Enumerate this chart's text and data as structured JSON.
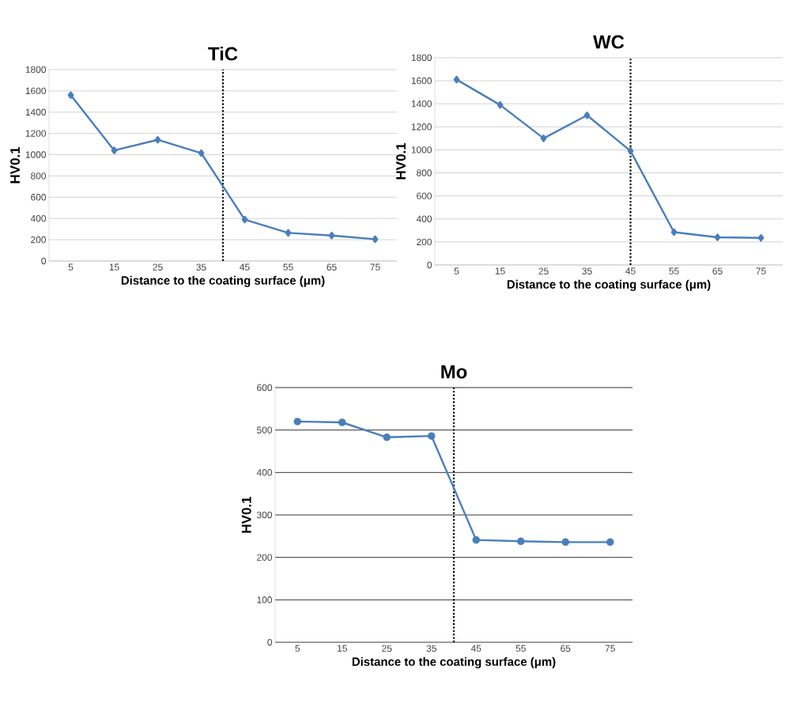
{
  "chart_data": [
    {
      "type": "line",
      "title": "TiC",
      "xlabel": "Distance to the coating surface (μm)",
      "ylabel": "HV0.1",
      "x": [
        5,
        15,
        25,
        35,
        45,
        55,
        65,
        75
      ],
      "values": [
        1560,
        1040,
        1140,
        1015,
        390,
        265,
        240,
        205
      ],
      "color": "#4a7ebb",
      "marker": "diamond",
      "xlim": [
        0,
        80
      ],
      "xticks": [
        5,
        15,
        25,
        35,
        45,
        55,
        65,
        75
      ],
      "ylim": [
        0,
        1800
      ],
      "yticks": [
        0,
        200,
        400,
        600,
        800,
        1000,
        1200,
        1400,
        1600,
        1800
      ],
      "grid": "y",
      "ref_lines": [
        {
          "axis": "x",
          "value": 40,
          "color": "#000000",
          "line_style": "dotted"
        }
      ]
    },
    {
      "type": "line",
      "title": "WC",
      "xlabel": "Distance to the coating surface (μm)",
      "ylabel": "HV0.1",
      "x": [
        5,
        15,
        25,
        35,
        45,
        55,
        65,
        75
      ],
      "values": [
        1610,
        1390,
        1100,
        1300,
        990,
        285,
        240,
        235
      ],
      "color": "#4a7ebb",
      "marker": "diamond",
      "xlim": [
        0,
        80
      ],
      "xticks": [
        5,
        15,
        25,
        35,
        45,
        55,
        65,
        75
      ],
      "ylim": [
        0,
        1800
      ],
      "yticks": [
        0,
        200,
        400,
        600,
        800,
        1000,
        1200,
        1400,
        1600,
        1800
      ],
      "grid": "y",
      "ref_lines": [
        {
          "axis": "x",
          "value": 45,
          "color": "#000000",
          "line_style": "dotted"
        }
      ]
    },
    {
      "type": "line",
      "title": "Mo",
      "xlabel": "Distance to the coating surface (μm)",
      "ylabel": "HV0.1",
      "x": [
        5,
        15,
        25,
        35,
        45,
        55,
        65,
        75
      ],
      "values": [
        520,
        518,
        483,
        486,
        241,
        238,
        236,
        236
      ],
      "color": "#4a7ebb",
      "marker": "circle",
      "xlim": [
        0,
        80
      ],
      "xticks": [
        5,
        15,
        25,
        35,
        45,
        55,
        65,
        75
      ],
      "ylim": [
        0,
        600
      ],
      "yticks": [
        0,
        100,
        200,
        300,
        400,
        500,
        600
      ],
      "grid": "y",
      "ref_lines": [
        {
          "axis": "x",
          "value": 40,
          "color": "#000000",
          "line_style": "dotted"
        }
      ]
    }
  ]
}
